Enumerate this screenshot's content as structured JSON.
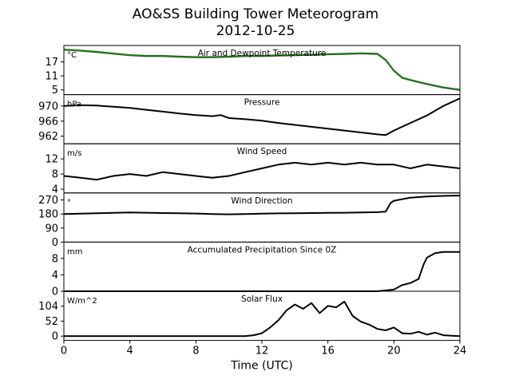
{
  "figure": {
    "title_line1": "AO&SS Building Tower Meteorogram",
    "title_line2": "2012-10-25",
    "xlabel": "Time (UTC)",
    "xticks": [
      "0",
      "4",
      "8",
      "12",
      "16",
      "20",
      "24"
    ]
  },
  "chart_data": [
    {
      "type": "line",
      "title": "Air and Dewpoint Temperature",
      "unit": "°C",
      "xlim": [
        0,
        24
      ],
      "ylim": [
        3,
        24
      ],
      "yticks": [
        5,
        11,
        17
      ],
      "series": [
        {
          "color": "#000000",
          "x": [
            0,
            1,
            2,
            3,
            4,
            5,
            6,
            7,
            8,
            9,
            10,
            11,
            12,
            13,
            14,
            15,
            16,
            17,
            18,
            19,
            19.5,
            20,
            20.5,
            21,
            22,
            23,
            24
          ],
          "y": [
            22.2,
            21.8,
            21.2,
            20.5,
            19.8,
            19.5,
            19.5,
            19.2,
            19,
            19,
            19.2,
            19.5,
            19.5,
            19.7,
            19.8,
            20,
            20.2,
            20.4,
            20.6,
            20.4,
            17.8,
            13.2,
            10.2,
            9.2,
            7.5,
            6,
            5
          ]
        },
        {
          "color": "#217a1a",
          "x": [
            0,
            1,
            2,
            3,
            4,
            5,
            6,
            7,
            8,
            9,
            10,
            11,
            12,
            13,
            14,
            15,
            16,
            17,
            18,
            19,
            19.5,
            20,
            20.5,
            21,
            22,
            23,
            24
          ],
          "y": [
            22.3,
            21.9,
            21.3,
            20.6,
            19.9,
            19.6,
            19.6,
            19.3,
            19.1,
            19.1,
            19.3,
            19.6,
            19.6,
            19.8,
            19.9,
            20.1,
            20.3,
            20.5,
            20.7,
            20.5,
            17.9,
            13.3,
            10.3,
            9.3,
            7.6,
            6.1,
            5.1
          ]
        }
      ]
    },
    {
      "type": "line",
      "title": "Pressure",
      "unit": "hPa",
      "xlim": [
        0,
        24
      ],
      "ylim": [
        960,
        973
      ],
      "yticks": [
        962,
        966,
        970
      ],
      "series": [
        {
          "color": "#000000",
          "x": [
            0,
            1,
            2,
            3,
            4,
            5,
            6,
            7,
            8,
            9,
            9.5,
            10,
            11,
            12,
            13,
            14,
            15,
            16,
            17,
            18,
            19,
            19.5,
            20,
            21,
            22,
            23,
            24
          ],
          "y": [
            970,
            970.2,
            970.1,
            969.8,
            969.5,
            969,
            968.5,
            968,
            967.6,
            967.3,
            967.6,
            966.8,
            966.5,
            966.1,
            965.5,
            965,
            964.5,
            964,
            963.5,
            963,
            962.5,
            962.3,
            963.5,
            965.5,
            967.5,
            970,
            972
          ]
        }
      ]
    },
    {
      "type": "line",
      "title": "Wind Speed",
      "unit": "m/s",
      "xlim": [
        0,
        24
      ],
      "ylim": [
        3,
        16
      ],
      "yticks": [
        4,
        8,
        12
      ],
      "series": [
        {
          "color": "#000000",
          "x": [
            0,
            1,
            2,
            3,
            4,
            5,
            6,
            7,
            8,
            9,
            10,
            11,
            12,
            13,
            14,
            15,
            16,
            17,
            18,
            19,
            20,
            21,
            22,
            23,
            24
          ],
          "y": [
            7.5,
            7,
            6.5,
            7.5,
            8,
            7.5,
            8.5,
            8,
            7.5,
            7,
            7.5,
            8.5,
            9.5,
            10.5,
            11,
            10.5,
            11,
            10.5,
            11,
            10.5,
            10.5,
            9.5,
            10.5,
            10,
            9.5
          ]
        }
      ]
    },
    {
      "type": "line",
      "title": "Wind Direction",
      "unit": "°",
      "xlim": [
        0,
        24
      ],
      "ylim": [
        0,
        315
      ],
      "yticks": [
        0,
        90,
        180,
        270
      ],
      "series": [
        {
          "color": "#000000",
          "x": [
            0,
            1,
            2,
            3,
            4,
            5,
            6,
            7,
            8,
            9,
            10,
            11,
            12,
            13,
            14,
            15,
            16,
            17,
            18,
            19,
            19.5,
            19.8,
            20,
            21,
            22,
            23,
            24
          ],
          "y": [
            180,
            182,
            185,
            187,
            190,
            188,
            186,
            185,
            183,
            180,
            178,
            180,
            182,
            184,
            185,
            186,
            187,
            188,
            190,
            192,
            195,
            250,
            265,
            285,
            292,
            296,
            298
          ]
        }
      ]
    },
    {
      "type": "line",
      "title": "Accumulated Precipitation Since 0Z",
      "unit": "mm",
      "xlim": [
        0,
        24
      ],
      "ylim": [
        0,
        12
      ],
      "yticks": [
        0,
        4,
        8
      ],
      "series": [
        {
          "color": "#000000",
          "x": [
            0,
            19,
            20,
            20.5,
            21,
            21.5,
            21.8,
            22,
            22.5,
            23,
            24
          ],
          "y": [
            0,
            0,
            0.4,
            1.5,
            2,
            3,
            6.5,
            8.2,
            9.3,
            9.6,
            9.6
          ]
        }
      ]
    },
    {
      "type": "line",
      "title": "Solar Flux",
      "unit": "W/m^2",
      "xlim": [
        0,
        24
      ],
      "ylim": [
        -15,
        156
      ],
      "yticks": [
        0,
        52,
        104
      ],
      "series": [
        {
          "color": "#000000",
          "x": [
            0,
            11,
            11.5,
            12,
            12.5,
            13,
            13.5,
            14,
            14.5,
            15,
            15.5,
            16,
            16.5,
            17,
            17.5,
            18,
            18.5,
            19,
            19.5,
            20,
            20.5,
            21,
            21.5,
            22,
            22.5,
            23,
            23.5,
            24
          ],
          "y": [
            0,
            0,
            3,
            10,
            30,
            55,
            90,
            110,
            95,
            115,
            80,
            105,
            100,
            120,
            70,
            50,
            40,
            25,
            20,
            30,
            10,
            8,
            15,
            5,
            12,
            3,
            1,
            0
          ]
        }
      ]
    }
  ]
}
